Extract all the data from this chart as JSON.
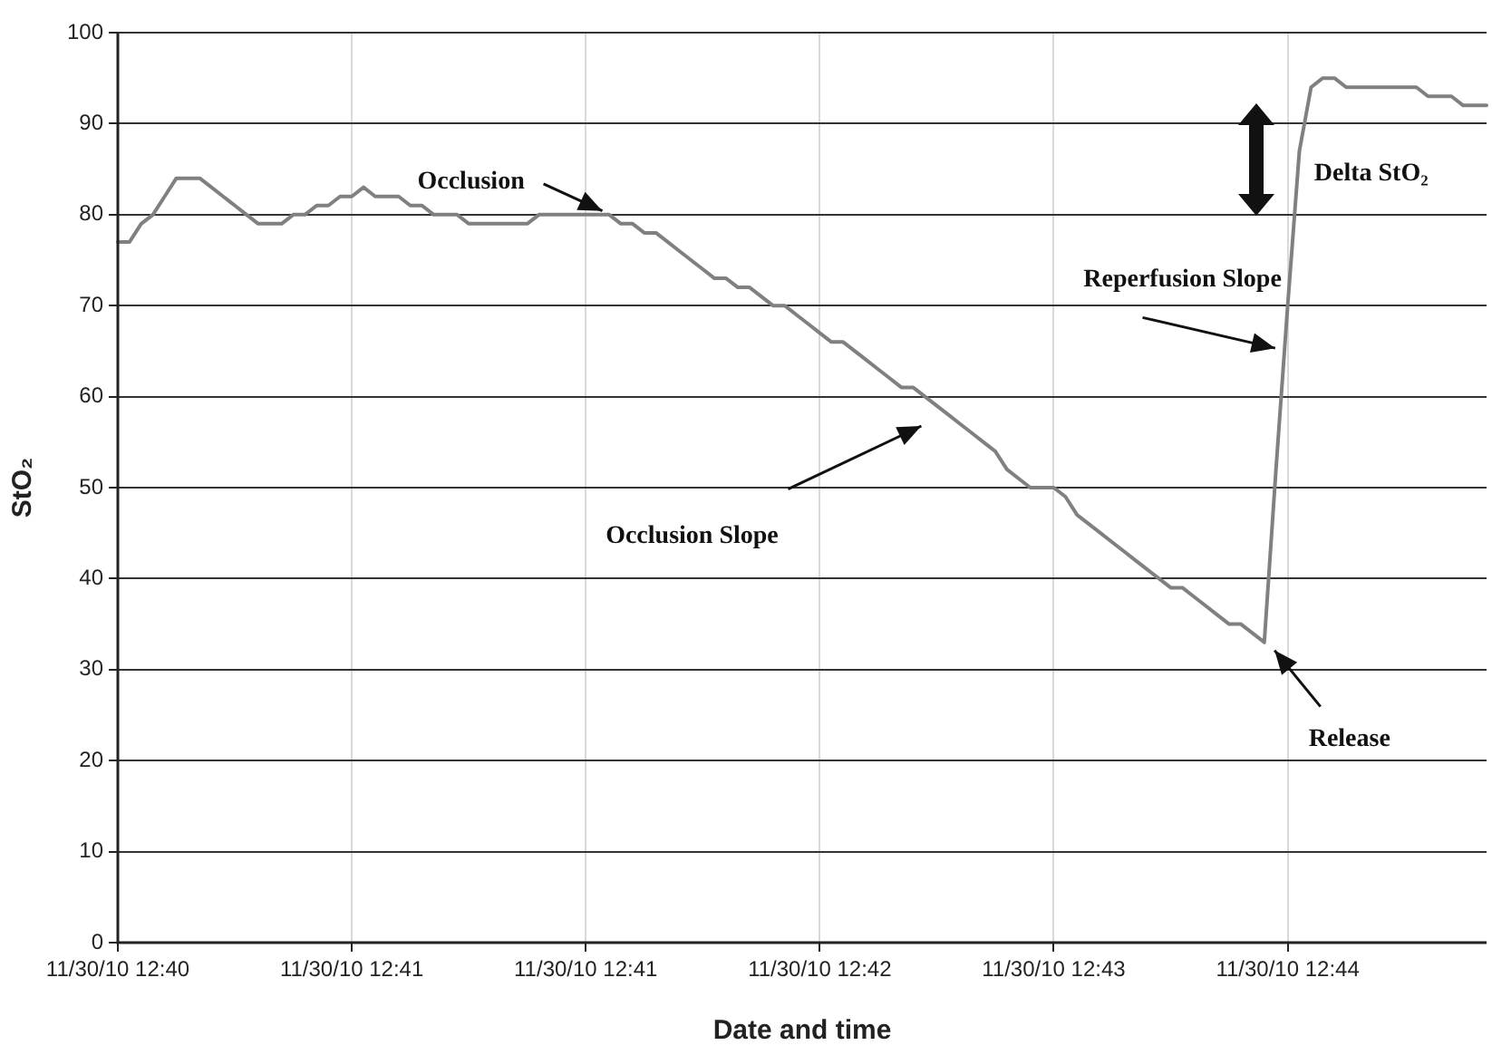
{
  "chart_data": {
    "type": "line",
    "xlabel": "Date and time",
    "ylabel": "StO₂",
    "categories": [
      "11/30/10 12:40",
      null,
      null,
      null,
      null,
      null,
      null,
      null,
      null,
      null,
      null,
      null,
      null,
      null,
      null,
      null,
      null,
      null,
      null,
      null,
      "11/30/10 12:41",
      null,
      null,
      null,
      null,
      null,
      null,
      null,
      null,
      null,
      null,
      null,
      null,
      null,
      null,
      null,
      null,
      null,
      null,
      null,
      "11/30/10 12:41",
      null,
      null,
      null,
      null,
      null,
      null,
      null,
      null,
      null,
      null,
      null,
      null,
      null,
      null,
      null,
      null,
      null,
      null,
      null,
      "11/30/10 12:42",
      null,
      null,
      null,
      null,
      null,
      null,
      null,
      null,
      null,
      null,
      null,
      null,
      null,
      null,
      null,
      null,
      null,
      null,
      null,
      "11/30/10 12:43",
      null,
      null,
      null,
      null,
      null,
      null,
      null,
      null,
      null,
      null,
      null,
      null,
      null,
      null,
      null,
      null,
      null,
      null,
      null,
      "11/30/10 12:44",
      null,
      null,
      null,
      null,
      null,
      null,
      null,
      null,
      null,
      null,
      null,
      null,
      null,
      null,
      null,
      null,
      null
    ],
    "series": [
      {
        "color": "#808080",
        "values": [
          77,
          77,
          79,
          80,
          82,
          84,
          84,
          84,
          83,
          82,
          81,
          80,
          79,
          79,
          79,
          80,
          80,
          81,
          81,
          82,
          82,
          83,
          82,
          82,
          82,
          81,
          81,
          80,
          80,
          80,
          79,
          79,
          79,
          79,
          79,
          79,
          80,
          80,
          80,
          80,
          80,
          80,
          80,
          79,
          79,
          78,
          78,
          77,
          76,
          75,
          74,
          73,
          73,
          72,
          72,
          71,
          70,
          70,
          69,
          68,
          67,
          66,
          66,
          65,
          64,
          63,
          62,
          61,
          61,
          60,
          59,
          58,
          57,
          56,
          55,
          54,
          52,
          51,
          50,
          50,
          50,
          49,
          47,
          46,
          45,
          44,
          43,
          42,
          41,
          40,
          39,
          39,
          38,
          37,
          36,
          35,
          35,
          34,
          33,
          52,
          70,
          87,
          94,
          95,
          95,
          94,
          94,
          94,
          94,
          94,
          94,
          94,
          93,
          93,
          93,
          92,
          92,
          92
        ]
      }
    ],
    "ylim": [
      0,
      100
    ],
    "yticks": [
      0,
      10,
      20,
      30,
      40,
      50,
      60,
      70,
      80,
      90,
      100
    ],
    "grid": true,
    "marker": "none",
    "line_style": "solid",
    "annotations": [
      {
        "text": "Occlusion",
        "y": 80
      },
      "Occlusion Slope",
      "Reperfusion Slope",
      "Release",
      "Delta StO₂"
    ]
  }
}
